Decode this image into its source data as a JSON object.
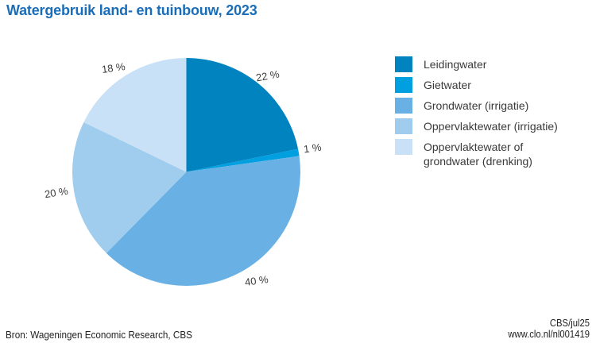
{
  "title": "Watergebruik land- en tuinbouw, 2023",
  "chart_data": {
    "type": "pie",
    "title": "Watergebruik land- en tuinbouw, 2023",
    "unit": "percent",
    "start_angle": "12-oclock",
    "direction": "clockwise",
    "legend_position": "right",
    "slices": [
      {
        "label": "Leidingwater",
        "value": 22,
        "display": "22 %",
        "color": "#0083bf"
      },
      {
        "label": "Gietwater",
        "value": 1,
        "display": "1 %",
        "color": "#009fe0"
      },
      {
        "label": "Grondwater (irrigatie)",
        "value": 40,
        "display": "40 %",
        "color": "#69b1e4"
      },
      {
        "label": "Oppervlaktewater (irrigatie)",
        "value": 20,
        "display": "20 %",
        "color": "#a0cdee"
      },
      {
        "label": "Oppervlaktewater of grondwater (drenking)",
        "value": 18,
        "display": "18 %",
        "color": "#c8e1f6"
      }
    ]
  },
  "footer": {
    "source": "Bron: Wageningen Economic Research, CBS",
    "credit": "CBS/jul25",
    "url": "www.clo.nl/nl001419"
  },
  "colors": {
    "title_text": "#1a6db8",
    "label_text": "#3c3c3c",
    "footer_text": "#222222"
  }
}
